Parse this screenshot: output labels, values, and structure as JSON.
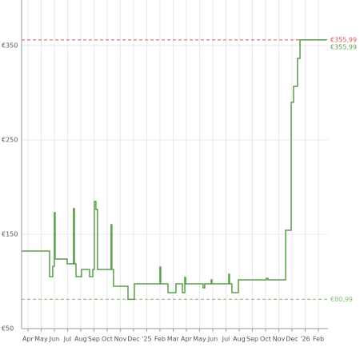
{
  "chart_data": {
    "type": "line",
    "x": [
      -0.48,
      1.64,
      1.64,
      1.88,
      1.88,
      2.0,
      2.0,
      2.06,
      2.06,
      2.97,
      2.97,
      3.45,
      3.45,
      3.52,
      3.52,
      3.64,
      3.64,
      4.06,
      4.06,
      4.67,
      4.67,
      4.91,
      4.91,
      5.03,
      5.03,
      5.15,
      5.15,
      5.27,
      5.27,
      6.3,
      6.3,
      6.36,
      6.36,
      6.48,
      6.48,
      7.58,
      7.58,
      8.06,
      8.06,
      10.0,
      10.0,
      10.06,
      10.06,
      10.61,
      10.61,
      11.21,
      11.21,
      11.7,
      11.7,
      11.88,
      11.88,
      11.94,
      11.94,
      13.27,
      13.27,
      13.39,
      13.39,
      13.88,
      13.88,
      13.94,
      13.94,
      15.21,
      15.21,
      15.27,
      15.27,
      15.45,
      15.45,
      15.94,
      15.94,
      18.06,
      18.06,
      18.18,
      18.18,
      19.52,
      19.52,
      19.94,
      19.94,
      20.12,
      20.12,
      20.42,
      20.42,
      20.61,
      20.61,
      22.61
    ],
    "series": [
      {
        "color": "#5b9e4a",
        "values": [
          132.2,
          132.2,
          105.1,
          105.1,
          116.1,
          116.1,
          172.9,
          172.9,
          123.7,
          123.7,
          118.6,
          118.6,
          177.1,
          177.1,
          118.6,
          118.6,
          105.1,
          105.1,
          112.7,
          112.7,
          105.1,
          105.1,
          112.7,
          112.7,
          184.7,
          184.7,
          176.3,
          176.3,
          112.7,
          112.7,
          160.2,
          160.2,
          112.7,
          112.7,
          94.9,
          94.9,
          80.99,
          80.99,
          97.5,
          97.5,
          115.3,
          115.3,
          97.5,
          97.5,
          88.1,
          88.1,
          97.5,
          97.5,
          88.1,
          88.1,
          104.2,
          104.2,
          97.5,
          97.5,
          93.2,
          93.2,
          97.5,
          97.5,
          101.7,
          101.7,
          97.5,
          97.5,
          107.6,
          107.6,
          97.5,
          97.5,
          88.1,
          88.1,
          101.7,
          101.7,
          103.4,
          103.4,
          101.7,
          101.7,
          154.2,
          154.2,
          289.8,
          289.8,
          306.8,
          306.8,
          336.4,
          336.4,
          355.99,
          355.99
        ]
      }
    ],
    "xlim": [
      -0.48,
      22.73
    ],
    "ylim": [
      50,
      398.3
    ],
    "xticks": [
      {
        "value": 0,
        "label": "Apr"
      },
      {
        "value": 1,
        "label": "May"
      },
      {
        "value": 2,
        "label": "Jun"
      },
      {
        "value": 3,
        "label": "Jul"
      },
      {
        "value": 4,
        "label": "Aug"
      },
      {
        "value": 5,
        "label": "Sep"
      },
      {
        "value": 6,
        "label": "Oct"
      },
      {
        "value": 7,
        "label": "Nov"
      },
      {
        "value": 8,
        "label": "Dec"
      },
      {
        "value": 9,
        "label": "'25"
      },
      {
        "value": 10,
        "label": "Feb"
      },
      {
        "value": 11,
        "label": "Mar"
      },
      {
        "value": 12,
        "label": "Apr"
      },
      {
        "value": 13,
        "label": "May"
      },
      {
        "value": 14,
        "label": "Jun"
      },
      {
        "value": 15,
        "label": "Jul"
      },
      {
        "value": 16,
        "label": "Aug"
      },
      {
        "value": 17,
        "label": "Sep"
      },
      {
        "value": 18,
        "label": "Oct"
      },
      {
        "value": 19,
        "label": "Nov"
      },
      {
        "value": 20,
        "label": "Dec"
      },
      {
        "value": 21,
        "label": "'26"
      },
      {
        "value": 22,
        "label": "Feb"
      }
    ],
    "yticks": [
      {
        "value": 50,
        "label": "€50"
      },
      {
        "value": 150,
        "label": "€150"
      },
      {
        "value": 250,
        "label": "€250"
      },
      {
        "value": 350,
        "label": "€350"
      }
    ],
    "grid": true,
    "reference_lines": [
      {
        "value": 355.99,
        "label": "€355,99",
        "color": "#d9534f"
      },
      {
        "value": 80.99,
        "label": "€80,99",
        "color": "#7cc06b"
      }
    ],
    "annotations": [
      {
        "value": 355.99,
        "label": "€355,99",
        "color": "#5b9e4a"
      }
    ]
  }
}
